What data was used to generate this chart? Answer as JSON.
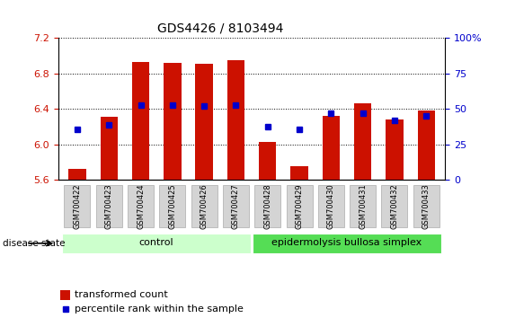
{
  "title": "GDS4426 / 8103494",
  "samples": [
    "GSM700422",
    "GSM700423",
    "GSM700424",
    "GSM700425",
    "GSM700426",
    "GSM700427",
    "GSM700428",
    "GSM700429",
    "GSM700430",
    "GSM700431",
    "GSM700432",
    "GSM700433"
  ],
  "bar_values": [
    5.72,
    6.31,
    6.93,
    6.92,
    6.91,
    6.95,
    6.03,
    5.75,
    6.32,
    6.46,
    6.28,
    6.38
  ],
  "blue_values": [
    6.17,
    6.22,
    6.44,
    6.44,
    6.43,
    6.44,
    6.2,
    6.17,
    6.35,
    6.35,
    6.27,
    6.32
  ],
  "ymin": 5.6,
  "ymax": 7.2,
  "yticks": [
    5.6,
    6.0,
    6.4,
    6.8,
    7.2
  ],
  "bar_color": "#cc1100",
  "blue_color": "#0000cc",
  "bar_width": 0.55,
  "groups": [
    {
      "label": "control",
      "start": 0,
      "end": 5,
      "color": "#ccffcc"
    },
    {
      "label": "epidermolysis bullosa simplex",
      "start": 6,
      "end": 11,
      "color": "#55dd55"
    }
  ],
  "right_yticks": [
    0,
    25,
    50,
    75,
    100
  ],
  "right_ylabels": [
    "0",
    "25",
    "50",
    "75",
    "100%"
  ],
  "right_color": "#0000cc",
  "disease_label": "disease state",
  "legend_bar_label": "transformed count",
  "legend_blue_label": "percentile rank within the sample",
  "title_fontsize": 10,
  "tick_fontsize": 8,
  "label_fontsize": 8
}
